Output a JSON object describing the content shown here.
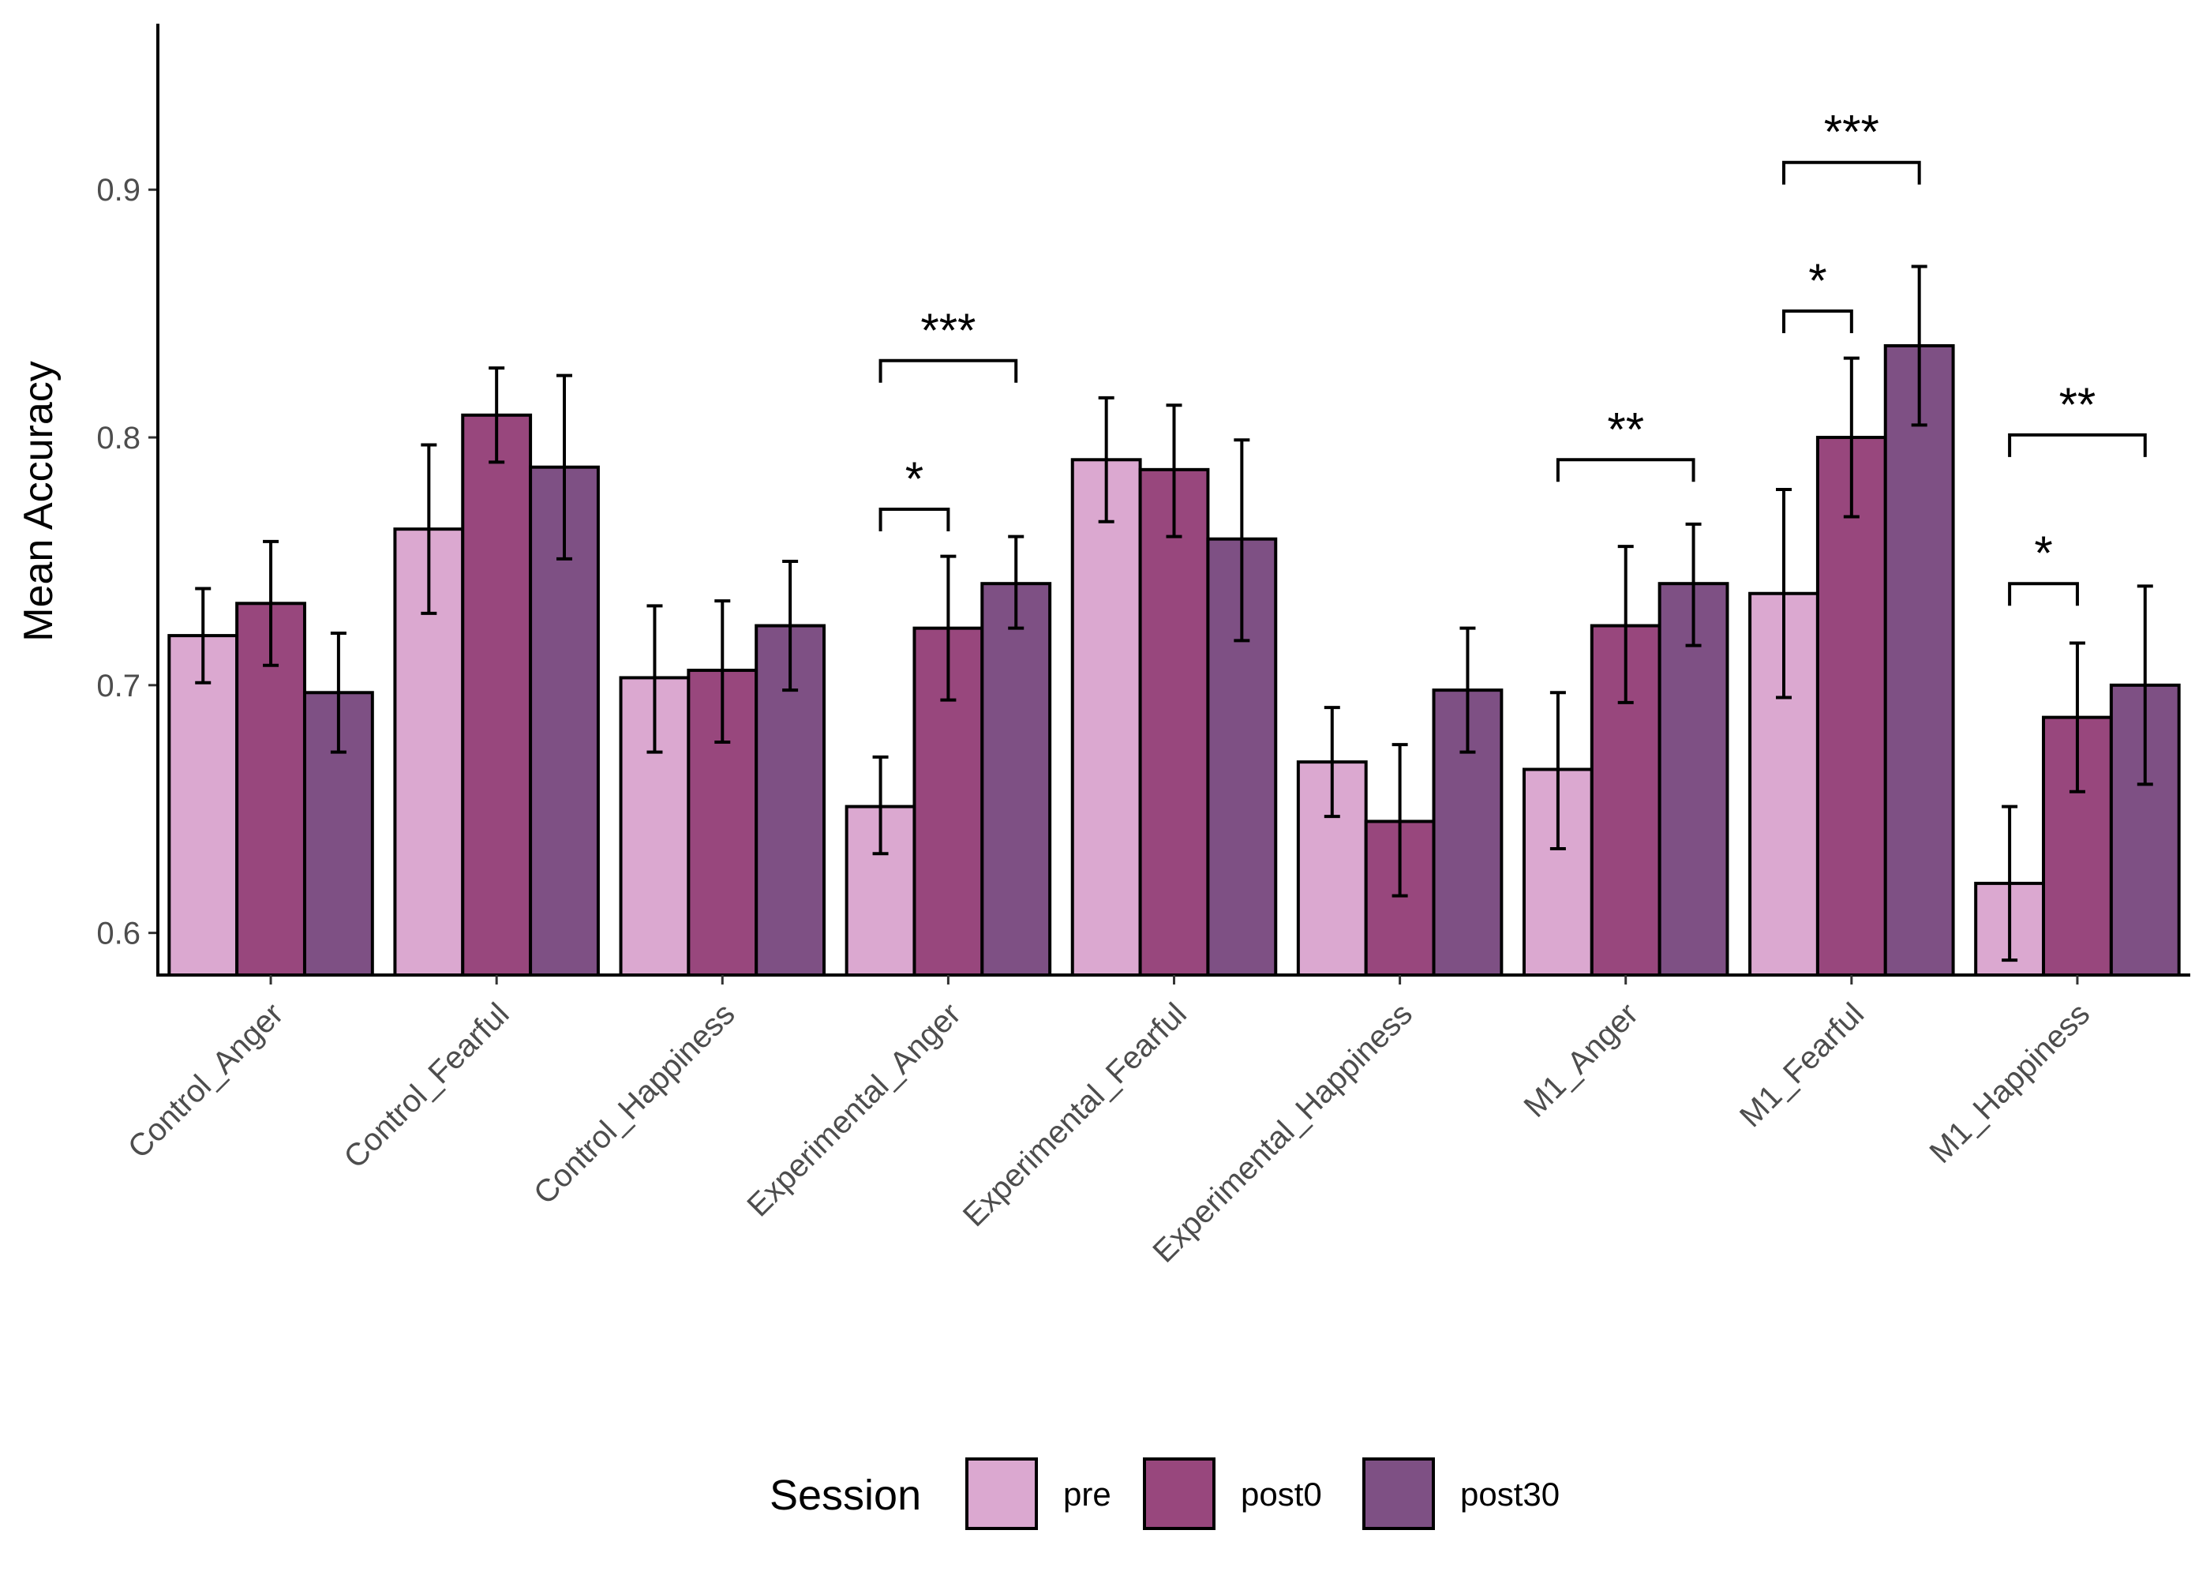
{
  "chart_data": {
    "type": "bar",
    "ylabel": "Mean Accuracy",
    "xlabel": "",
    "ylim": [
      0.583,
      0.967
    ],
    "yticks": [
      0.6,
      0.7,
      0.8,
      0.9
    ],
    "ytick_labels": [
      "0.6",
      "0.7",
      "0.8",
      "0.9"
    ],
    "categories": [
      "Control_Anger",
      "Control_Fearful",
      "Control_Happiness",
      "Experimental_Anger",
      "Experimental_Fearful",
      "Experimental_Happiness",
      "M1_Anger",
      "M1_Fearful",
      "M1_Happiness"
    ],
    "legend": {
      "title": "Session",
      "placement": "bottom"
    },
    "series": [
      {
        "name": "pre",
        "color": "#dba8d0",
        "values": [
          0.72,
          0.763,
          0.703,
          0.651,
          0.791,
          0.669,
          0.666,
          0.737,
          0.62
        ],
        "err_low": [
          0.701,
          0.729,
          0.673,
          0.632,
          0.766,
          0.647,
          0.634,
          0.695,
          0.589
        ],
        "err_high": [
          0.739,
          0.797,
          0.732,
          0.671,
          0.816,
          0.691,
          0.697,
          0.779,
          0.651
        ]
      },
      {
        "name": "post0",
        "color": "#98477d",
        "values": [
          0.733,
          0.809,
          0.706,
          0.723,
          0.787,
          0.645,
          0.724,
          0.8,
          0.687
        ],
        "err_low": [
          0.708,
          0.79,
          0.677,
          0.694,
          0.76,
          0.615,
          0.693,
          0.768,
          0.657
        ],
        "err_high": [
          0.758,
          0.828,
          0.734,
          0.752,
          0.813,
          0.676,
          0.756,
          0.832,
          0.717
        ]
      },
      {
        "name": "post30",
        "color": "#7e5084",
        "values": [
          0.697,
          0.788,
          0.724,
          0.741,
          0.759,
          0.698,
          0.741,
          0.837,
          0.7
        ],
        "err_low": [
          0.673,
          0.751,
          0.698,
          0.723,
          0.718,
          0.673,
          0.716,
          0.805,
          0.66
        ],
        "err_high": [
          0.721,
          0.825,
          0.75,
          0.76,
          0.799,
          0.723,
          0.765,
          0.869,
          0.74
        ]
      }
    ],
    "significance": [
      {
        "category": 3,
        "from": 0,
        "to": 1,
        "y": 0.771,
        "label": "*"
      },
      {
        "category": 3,
        "from": 0,
        "to": 2,
        "y": 0.831,
        "label": "***"
      },
      {
        "category": 6,
        "from": 0,
        "to": 2,
        "y": 0.791,
        "label": "**"
      },
      {
        "category": 7,
        "from": 0,
        "to": 1,
        "y": 0.851,
        "label": "*"
      },
      {
        "category": 7,
        "from": 0,
        "to": 2,
        "y": 0.911,
        "label": "***"
      },
      {
        "category": 8,
        "from": 0,
        "to": 1,
        "y": 0.741,
        "label": "*"
      },
      {
        "category": 8,
        "from": 0,
        "to": 2,
        "y": 0.801,
        "label": "**"
      }
    ]
  }
}
